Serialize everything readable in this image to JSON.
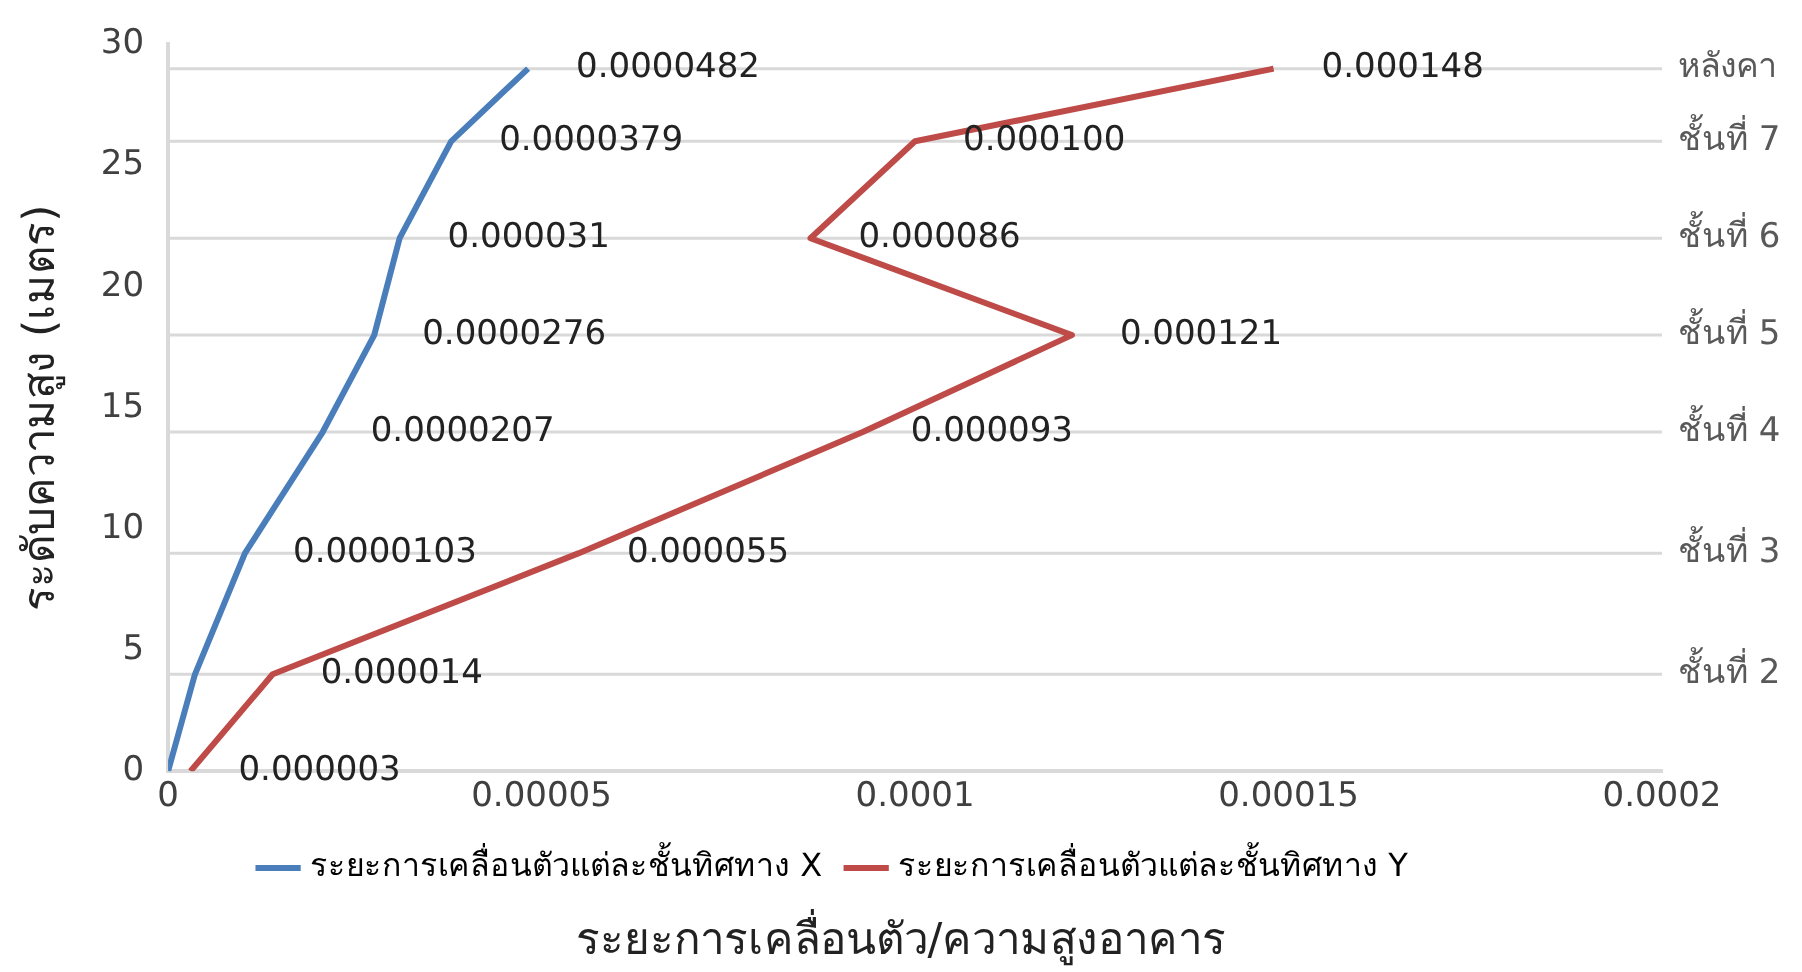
{
  "chart_data": {
    "type": "line",
    "ylabel": "ระดับความสูง (เมตร)",
    "xlabel": "ระยะการเคลื่อนตัว/ความสูงอาคาร",
    "xlim": [
      0,
      0.0002
    ],
    "xticks": [
      0,
      {
        "value": 5e-05,
        "label": "0.00005"
      },
      0.0001,
      0.00015,
      0.0002
    ],
    "ylim": [
      0,
      30
    ],
    "yticks": [
      0,
      5,
      10,
      15,
      20,
      25,
      30
    ],
    "grid": false,
    "legend": "bottom",
    "marker": "none",
    "line_style": "solid",
    "series": [
      {
        "name": "ระยะการเคลื่อนตัวแต่ละชั้นทิศทาง X",
        "color": "#4a7ebb",
        "x": [
          0,
          3.6e-06,
          1.03e-05,
          2.07e-05,
          2.76e-05,
          3.1e-05,
          3.79e-05,
          4.82e-05
        ],
        "values": [
          0,
          4,
          9,
          14,
          18,
          22,
          26,
          29
        ]
      },
      {
        "name": "ระยะการเคลื่อนตัวแต่ละชั้นทิศทาง Y",
        "color": "#be4b48",
        "x": [
          3e-06,
          1.4e-05,
          5.5e-05,
          9.3e-05,
          0.000121,
          8.6e-05,
          0.0001,
          0.000148
        ],
        "values": [
          0,
          4,
          9,
          14,
          18,
          22,
          26,
          29
        ]
      }
    ],
    "annotations": [
      {
        "text": "0.0000103",
        "x": 1.03e-05,
        "y": 9
      },
      {
        "text": "0.0000207",
        "x": 2.07e-05,
        "y": 14
      },
      {
        "text": "0.0000276",
        "x": 2.76e-05,
        "y": 18
      },
      {
        "text": "0.000031",
        "x": 3.1e-05,
        "y": 22
      },
      {
        "text": "0.0000379",
        "x": 3.79e-05,
        "y": 26
      },
      {
        "text": "0.0000482",
        "x": 4.82e-05,
        "y": 29
      },
      {
        "text": "0.000003",
        "x": 3e-06,
        "y": 0
      },
      {
        "text": "0.000014",
        "x": 1.4e-05,
        "y": 4
      },
      {
        "text": "0.000055",
        "x": 5.5e-05,
        "y": 9
      },
      {
        "text": "0.000093",
        "x": 9.3e-05,
        "y": 14
      },
      {
        "text": "0.000121",
        "x": 0.000121,
        "y": 18
      },
      {
        "text": "0.000086",
        "x": 8.6e-05,
        "y": 22
      },
      {
        "text": "0.000100",
        "x": 0.0001,
        "y": 26
      },
      {
        "text": "0.000148",
        "x": 0.000148,
        "y": 29
      }
    ],
    "ref_lines": [
      {
        "axis": "y",
        "value": 4,
        "label": "ชั้นที่ 2",
        "color": "#d9d9d9"
      },
      {
        "axis": "y",
        "value": 9,
        "label": "ชั้นที่ 3",
        "color": "#d9d9d9"
      },
      {
        "axis": "y",
        "value": 14,
        "label": "ชั้นที่ 4",
        "color": "#d9d9d9"
      },
      {
        "axis": "y",
        "value": 18,
        "label": "ชั้นที่ 5",
        "color": "#d9d9d9"
      },
      {
        "axis": "y",
        "value": 22,
        "label": "ชั้นที่ 6",
        "color": "#d9d9d9"
      },
      {
        "axis": "y",
        "value": 26,
        "label": "ชั้นที่ 7",
        "color": "#d9d9d9"
      },
      {
        "axis": "y",
        "value": 29,
        "label": "หลังคา",
        "color": "#d9d9d9"
      }
    ]
  }
}
